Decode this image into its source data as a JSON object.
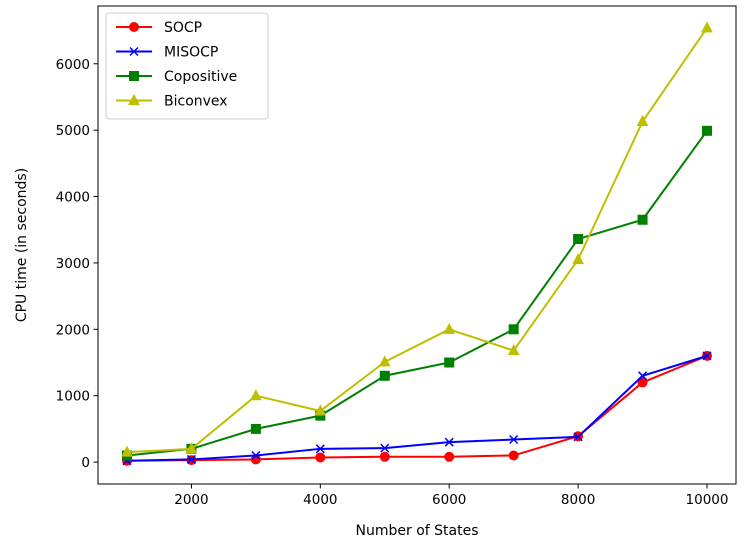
{
  "chart_data": {
    "type": "line",
    "title": "",
    "xlabel": "Number of States",
    "ylabel": "CPU time (in seconds)",
    "x": [
      1000,
      2000,
      3000,
      4000,
      5000,
      6000,
      7000,
      8000,
      9000,
      10000
    ],
    "xlim": [
      550,
      10450
    ],
    "ylim": [
      -330,
      6870
    ],
    "xticks": [
      2000,
      4000,
      6000,
      8000,
      10000
    ],
    "yticks": [
      0,
      1000,
      2000,
      3000,
      4000,
      5000,
      6000
    ],
    "grid": false,
    "legend_position": "top-left",
    "series": [
      {
        "name": "SOCP",
        "color": "#ff0000",
        "marker": "circle",
        "values": [
          20,
          30,
          40,
          70,
          80,
          80,
          100,
          390,
          1200,
          1600
        ]
      },
      {
        "name": "MISOCP",
        "color": "#0000ff",
        "marker": "x",
        "values": [
          20,
          40,
          100,
          200,
          210,
          300,
          340,
          380,
          1300,
          1600
        ]
      },
      {
        "name": "Copositive",
        "color": "#008000",
        "marker": "square",
        "values": [
          100,
          200,
          500,
          700,
          1300,
          1500,
          2000,
          3360,
          3650,
          4990
        ]
      },
      {
        "name": "Biconvex",
        "color": "#bfbf00",
        "marker": "triangle",
        "values": [
          150,
          200,
          1000,
          770,
          1510,
          2000,
          1680,
          3050,
          5130,
          6540
        ]
      }
    ]
  }
}
